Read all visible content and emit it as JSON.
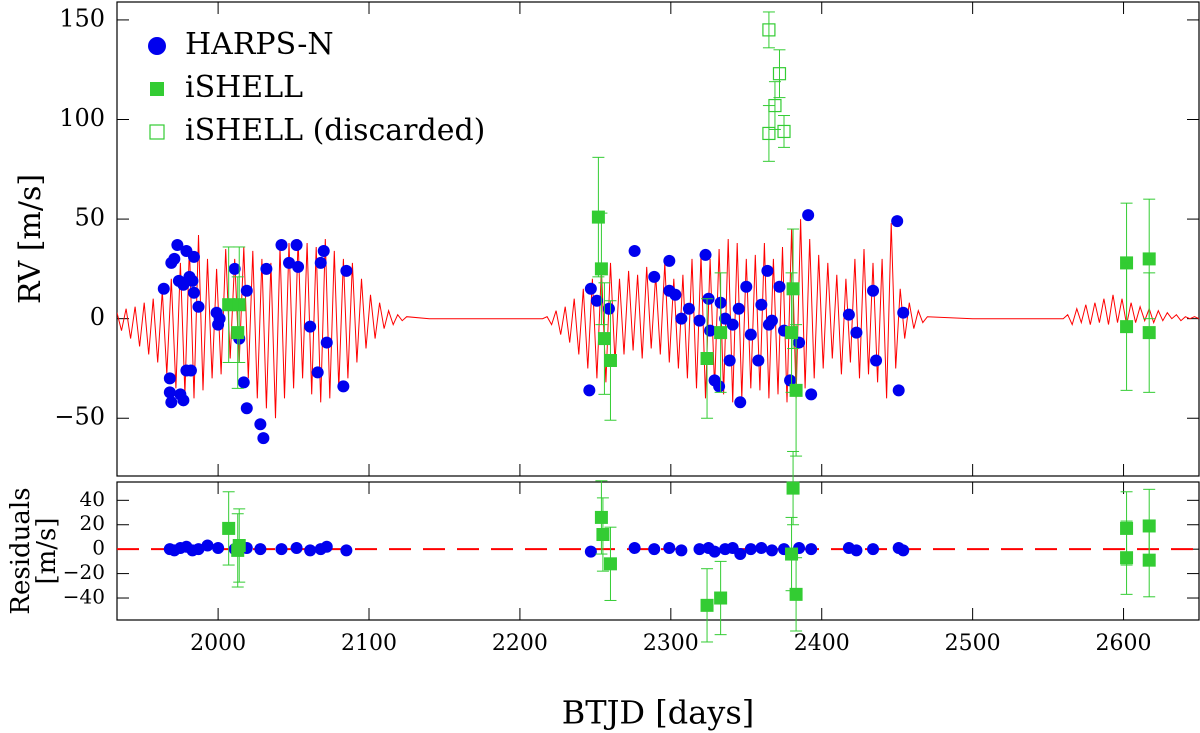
{
  "chart_data": [
    {
      "type": "scatter",
      "ylabel": "RV [m/s]",
      "xlim": [
        1933,
        2650
      ],
      "ylim": [
        -79,
        159
      ],
      "yticks": [
        {
          "value": -50,
          "label": "−50"
        },
        0,
        50,
        100,
        150
      ],
      "legend": "upper left",
      "series": [
        {
          "style": "line",
          "color": "#ff0000",
          "x": [
            1933,
            1936,
            1939,
            1942,
            1945,
            1948,
            1951,
            1954,
            1957,
            1960,
            1963,
            1966,
            1969,
            1972,
            1975,
            1978,
            1981,
            1984,
            1987,
            1990,
            1993,
            1996,
            1999,
            2002,
            2005,
            2008,
            2011,
            2014,
            2017,
            2020,
            2023,
            2026,
            2029,
            2032,
            2035,
            2038,
            2041,
            2044,
            2047,
            2050,
            2053,
            2056,
            2059,
            2062,
            2065,
            2068,
            2071,
            2074,
            2077,
            2080,
            2083,
            2086,
            2089,
            2092,
            2095,
            2098,
            2101,
            2104,
            2107,
            2110,
            2113,
            2116,
            2119,
            2122,
            2125,
            2140,
            2180,
            2215,
            2218,
            2221,
            2224,
            2227,
            2230,
            2233,
            2236,
            2239,
            2242,
            2245,
            2248,
            2251,
            2254,
            2257,
            2260,
            2263,
            2266,
            2269,
            2272,
            2275,
            2278,
            2281,
            2284,
            2287,
            2290,
            2293,
            2296,
            2299,
            2302,
            2305,
            2308,
            2311,
            2314,
            2317,
            2320,
            2323,
            2326,
            2329,
            2332,
            2335,
            2338,
            2341,
            2344,
            2347,
            2350,
            2353,
            2356,
            2359,
            2362,
            2365,
            2368,
            2371,
            2374,
            2377,
            2380,
            2383,
            2386,
            2389,
            2392,
            2395,
            2398,
            2401,
            2404,
            2407,
            2410,
            2413,
            2416,
            2419,
            2422,
            2425,
            2428,
            2431,
            2434,
            2437,
            2440,
            2443,
            2446,
            2449,
            2452,
            2455,
            2458,
            2461,
            2464,
            2467,
            2470,
            2500,
            2560,
            2563,
            2566,
            2569,
            2572,
            2575,
            2578,
            2581,
            2584,
            2587,
            2590,
            2593,
            2596,
            2599,
            2602,
            2605,
            2608,
            2611,
            2614,
            2617,
            2620,
            2623,
            2626,
            2629,
            2632,
            2635,
            2638,
            2641,
            2644,
            2647,
            2650
          ],
          "values": [
            3,
            -6,
            5,
            -10,
            6,
            -14,
            8,
            -18,
            10,
            -22,
            14,
            -28,
            20,
            -35,
            28,
            -38,
            36,
            -40,
            42,
            -36,
            30,
            -30,
            25,
            -28,
            35,
            -20,
            30,
            -22,
            36,
            -30,
            34,
            -40,
            30,
            -45,
            28,
            -50,
            36,
            -40,
            38,
            -35,
            40,
            -30,
            38,
            -38,
            36,
            -42,
            40,
            -40,
            34,
            -35,
            30,
            -30,
            28,
            -22,
            20,
            -15,
            12,
            -10,
            8,
            -5,
            4,
            -3,
            2,
            -1,
            1,
            0,
            0,
            0,
            1,
            -3,
            4,
            -8,
            6,
            -12,
            10,
            -18,
            15,
            -25,
            20,
            -30,
            25,
            -32,
            28,
            -22,
            20,
            -18,
            24,
            -16,
            22,
            -20,
            26,
            -15,
            22,
            -18,
            28,
            -22,
            20,
            -25,
            22,
            -30,
            30,
            -35,
            32,
            -40,
            30,
            -35,
            35,
            -38,
            40,
            -42,
            38,
            -40,
            30,
            -35,
            32,
            -36,
            38,
            -40,
            30,
            -38,
            36,
            -42,
            45,
            -40,
            50,
            -35,
            40,
            -30,
            32,
            -25,
            28,
            -20,
            22,
            -28,
            20,
            -22,
            30,
            -30,
            35,
            -28,
            28,
            -32,
            30,
            -40,
            48,
            -25,
            15,
            -10,
            8,
            -5,
            4,
            -2,
            1,
            0,
            0,
            2,
            -3,
            5,
            -2,
            7,
            -3,
            8,
            -2,
            10,
            -3,
            12,
            -2,
            10,
            -3,
            8,
            -2,
            6,
            -1,
            5,
            -2,
            4,
            -1,
            3,
            0,
            2,
            -1,
            1,
            0,
            1,
            0
          ]
        },
        {
          "name": "HARPS-N",
          "marker": "circle",
          "color": "#0000ee",
          "x": [
            1964,
            1968,
            1968,
            1969,
            1971,
            1973,
            1969,
            1975,
            1977,
            1974,
            1977,
            1979,
            1981,
            1983,
            1984,
            1982,
            1979,
            1984,
            1987,
            1999,
            2001,
            2000,
            2011,
            2014,
            2017,
            2019,
            2019,
            2028,
            2030,
            2032,
            2042,
            2047,
            2052,
            2053,
            2061,
            2066,
            2068,
            2070,
            2072,
            2083,
            2085,
            2246,
            2247,
            2251,
            2259,
            2276,
            2289,
            2299,
            2299,
            2303,
            2307,
            2312,
            2319,
            2323,
            2325,
            2326,
            2329,
            2332,
            2333,
            2336,
            2339,
            2341,
            2345,
            2346,
            2350,
            2353,
            2358,
            2360,
            2364,
            2365,
            2367,
            2372,
            2375,
            2379,
            2385,
            2391,
            2393,
            2418,
            2423,
            2434,
            2436,
            2450,
            2451,
            2454
          ],
          "values": [
            15,
            -30,
            -37,
            28,
            30,
            37,
            -42,
            -38,
            -41,
            19,
            17,
            34,
            21,
            19,
            13,
            -26,
            -26,
            31,
            6,
            3,
            0,
            -3,
            25,
            -10,
            -32,
            14,
            -45,
            -53,
            -60,
            25,
            37,
            28,
            37,
            26,
            -4,
            -27,
            28,
            34,
            -12,
            -34,
            24,
            -36,
            15,
            9,
            5,
            34,
            21,
            29,
            14,
            12,
            0,
            5,
            -1,
            32,
            10,
            -6,
            -31,
            -34,
            8,
            0,
            -21,
            -3,
            5,
            -42,
            16,
            -8,
            -21,
            7,
            24,
            -3,
            -1,
            16,
            -6,
            -31,
            -12,
            52,
            -38,
            2,
            -7,
            14,
            -21,
            49,
            -36,
            3
          ]
        },
        {
          "name": "iSHELL",
          "marker": "square",
          "color": "#33cc33",
          "x": [
            2007,
            2014,
            2013,
            2252,
            2254,
            2256,
            2260,
            2324,
            2333,
            2380,
            2381,
            2383,
            2602,
            2602,
            2617,
            2617
          ],
          "values": [
            7,
            7,
            -7,
            51,
            25,
            -10,
            -21,
            -20,
            -7,
            -7,
            15,
            -36,
            28,
            -4,
            30,
            -7
          ],
          "errors": [
            29,
            29,
            28,
            30,
            28,
            28,
            30,
            30,
            30,
            30,
            30,
            33,
            30,
            32,
            30,
            30
          ]
        },
        {
          "name": "iSHELL (discarded)",
          "marker": "square-open",
          "color": "#33cc33",
          "x": [
            2365,
            2365,
            2372,
            2369,
            2375
          ],
          "values": [
            145,
            93,
            123,
            107,
            94
          ],
          "errors": [
            9,
            14,
            12,
            12,
            8
          ]
        }
      ]
    },
    {
      "type": "scatter",
      "ylabel": [
        "Residuals",
        "[m/s]"
      ],
      "xlabel": "BTJD [days]",
      "xlim": [
        1933,
        2650
      ],
      "ylim": [
        -58,
        55
      ],
      "xticks": [
        2000,
        2100,
        2200,
        2300,
        2400,
        2500,
        2600
      ],
      "yticks": [
        {
          "value": -40,
          "label": "−40"
        },
        {
          "value": -20,
          "label": "−20"
        },
        0,
        20,
        40
      ],
      "hline": 0,
      "hline_color": "#ff0000",
      "series": [
        {
          "marker": "circle",
          "color": "#0000ee",
          "x": [
            1968,
            1971,
            1975,
            1979,
            1983,
            1987,
            1993,
            2000,
            2011,
            2019,
            2028,
            2042,
            2052,
            2061,
            2068,
            2072,
            2085,
            2247,
            2276,
            2289,
            2299,
            2307,
            2319,
            2325,
            2329,
            2336,
            2341,
            2346,
            2353,
            2360,
            2367,
            2375,
            2385,
            2393,
            2418,
            2423,
            2434,
            2451,
            2454
          ],
          "values": [
            0,
            -1,
            1,
            2,
            -1,
            0,
            3,
            1,
            0,
            1,
            0,
            0,
            1,
            -1,
            0,
            2,
            -1,
            -2,
            1,
            0,
            1,
            -1,
            0,
            1,
            -2,
            0,
            1,
            -4,
            0,
            1,
            -1,
            0,
            1,
            0,
            1,
            -1,
            0,
            1,
            -1
          ]
        },
        {
          "marker": "square",
          "color": "#33cc33",
          "x": [
            2007,
            2014,
            2013,
            2254,
            2255,
            2260,
            2324,
            2333,
            2380,
            2381,
            2383,
            2602,
            2602,
            2617,
            2617
          ],
          "values": [
            17,
            3,
            -1,
            26,
            12,
            -12,
            -46,
            -40,
            -4,
            50,
            -37,
            17,
            -7,
            19,
            -9
          ],
          "errors": [
            30,
            30,
            30,
            30,
            30,
            30,
            30,
            30,
            30,
            30,
            30,
            30,
            30,
            30,
            30
          ]
        }
      ]
    }
  ]
}
